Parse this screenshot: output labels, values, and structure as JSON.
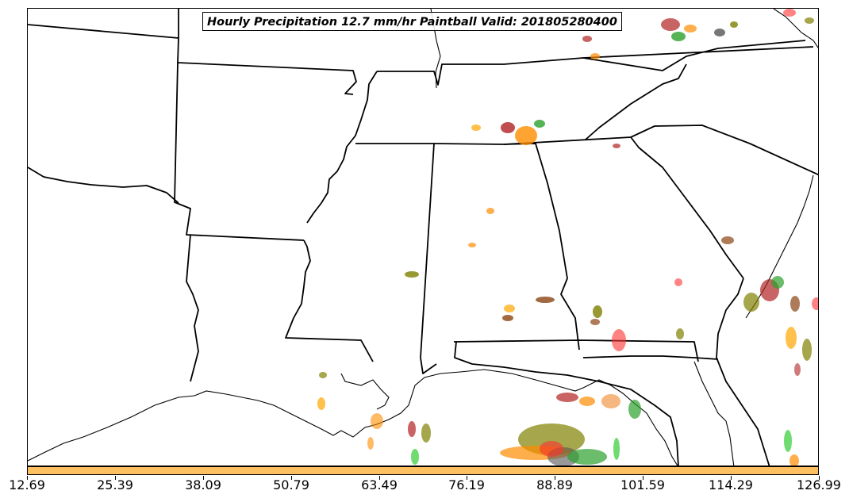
{
  "title": "Hourly Precipitation 12.7 mm/hr Paintball Valid: 201805280400",
  "colorbar": {
    "color": "#fdc060",
    "ticks": [
      "12.69",
      "25.39",
      "38.09",
      "50.79",
      "63.49",
      "76.19",
      "88.89",
      "101.59",
      "114.29",
      "126.99"
    ]
  },
  "colors": {
    "border": "#000000",
    "members": [
      "#ff3030",
      "#b22222",
      "#ff8c00",
      "#ffa500",
      "#2ca02c",
      "#33cc33",
      "#808000",
      "#8b4513",
      "#555555",
      "#f4a460"
    ]
  }
}
